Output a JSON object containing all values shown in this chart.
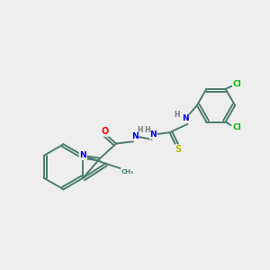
{
  "background_color": "#eeeeee",
  "bond_color": "#4a7c6f",
  "atoms": {
    "O": {
      "color": "#ff0000"
    },
    "N": {
      "color": "#0000ee"
    },
    "S": {
      "color": "#bbbb00"
    },
    "Cl": {
      "color": "#00bb00"
    },
    "H": {
      "color": "#777777"
    }
  },
  "figsize": [
    3.0,
    3.0
  ],
  "dpi": 100
}
